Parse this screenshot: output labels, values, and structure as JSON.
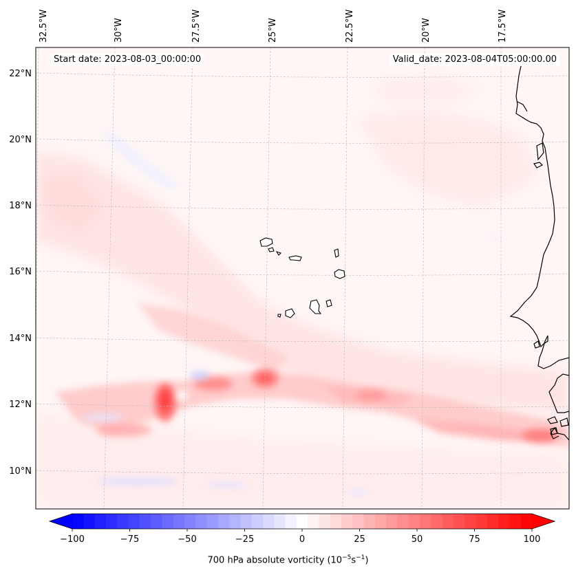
{
  "map": {
    "longitude_labels": [
      "32.5°W",
      "30°W",
      "27.5°W",
      "25°W",
      "22.5°W",
      "20°W",
      "17.5°W"
    ],
    "latitude_labels": [
      "22°N",
      "20°N",
      "18°N",
      "16°N",
      "14°N",
      "12°N",
      "10°N"
    ],
    "start_date_text": "Start date: 2023-08-03_00:00:00",
    "valid_date_text": "Valid_date: 2023-08-04T05:00:00.00",
    "field": "700 hPa absolute vorticity",
    "colormap": "bwr"
  },
  "colorbar": {
    "label_prefix": "700 hPa absolute vorticity (10",
    "label_exp1": "−5",
    "label_mid": "s",
    "label_exp2": "−1",
    "label_suffix": ")",
    "tick_labels": [
      "−100",
      "−75",
      "−50",
      "−25",
      "0",
      "25",
      "50",
      "75",
      "100"
    ],
    "min": -100,
    "max": 100,
    "levels": 41
  },
  "colors": {
    "negative": "#0000ff",
    "zero": "#ffffff",
    "positive": "#ff0000",
    "coastline": "#000000",
    "gridline": "#bbbbbb"
  }
}
